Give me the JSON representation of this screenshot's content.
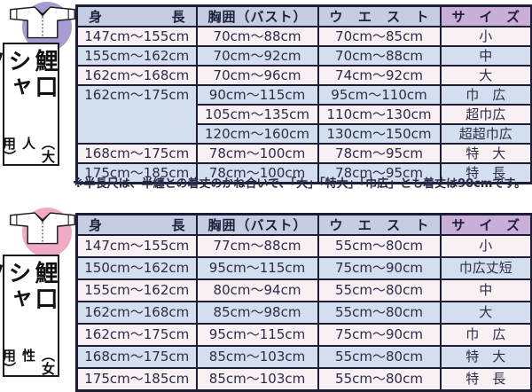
{
  "colors": {
    "header_blue": "#c4cde2",
    "header_purple": "#c9aed8",
    "row_pink": "#f8f0f3",
    "row_blue": "#d3dfee",
    "table_border": "#1d1d35",
    "circle_adult": "#a79bd1",
    "circle_women": "#efaac5"
  },
  "sidebar": {
    "adult": {
      "icon": "koikuchi-shirt-icon",
      "title": "鯉口シャツ",
      "subtitle": "（大人用）"
    },
    "women": {
      "icon": "koikuchi-shirt-icon",
      "title": "鯉口シャツ",
      "subtitle": "（女性用）"
    }
  },
  "tables": {
    "adult": {
      "headers": [
        "身長",
        "胸囲（バスト）",
        "ウエスト",
        "サイズ"
      ],
      "rows": [
        {
          "cells": [
            "147cm〜155cm",
            "70cm〜88cm",
            "70cm〜85cm",
            "小"
          ]
        },
        {
          "cells": [
            "155cm〜162cm",
            "70cm〜92cm",
            "70cm〜88cm",
            "中"
          ]
        },
        {
          "cells": [
            "162cm〜168cm",
            "70cm〜96cm",
            "74cm〜92cm",
            "大"
          ]
        },
        {
          "cells": [
            {
              "text": "162cm〜175cm",
              "rowspan": 3
            },
            "90cm〜115cm",
            "95cm〜110cm",
            "巾　広"
          ]
        },
        {
          "cells": [
            "105cm〜135cm",
            "110cm〜130cm",
            "超巾広"
          ]
        },
        {
          "cells": [
            "120cm〜160cm",
            "130cm〜150cm",
            "超超巾広"
          ]
        },
        {
          "cells": [
            "168cm〜175cm",
            "78cm〜100cm",
            "78cm〜95cm",
            "特　大"
          ]
        },
        {
          "cells": [
            "175cm〜185cm",
            "78cm〜100cm",
            "78cm〜95cm",
            "特　長"
          ]
        }
      ],
      "note": "※半長尺は、半纏との着丈のかね合いで、「大」「特大」「巾広」とも着丈は90cmです。"
    },
    "women": {
      "headers": [
        "身長",
        "胸囲（バスト）",
        "ウエスト",
        "サイズ"
      ],
      "rows": [
        {
          "cells": [
            "147cm〜155cm",
            "77cm〜88cm",
            "55cm〜80cm",
            "小"
          ]
        },
        {
          "cells": [
            "150cm〜162cm",
            "95cm〜115cm",
            "75cm〜90cm",
            "巾広丈短"
          ]
        },
        {
          "cells": [
            "155cm〜162cm",
            "80cm〜94cm",
            "55cm〜80cm",
            "中"
          ]
        },
        {
          "cells": [
            "162cm〜168cm",
            "85cm〜98cm",
            "55cm〜80cm",
            "大"
          ]
        },
        {
          "cells": [
            "162cm〜175cm",
            "95cm〜115cm",
            "75cm〜90cm",
            "巾　広"
          ]
        },
        {
          "cells": [
            "168cm〜175cm",
            "85cm〜103cm",
            "55cm〜80cm",
            "特　大"
          ]
        },
        {
          "cells": [
            "175cm〜185cm",
            "85cm〜103cm",
            "55cm〜80cm",
            "特　長"
          ]
        }
      ]
    }
  }
}
